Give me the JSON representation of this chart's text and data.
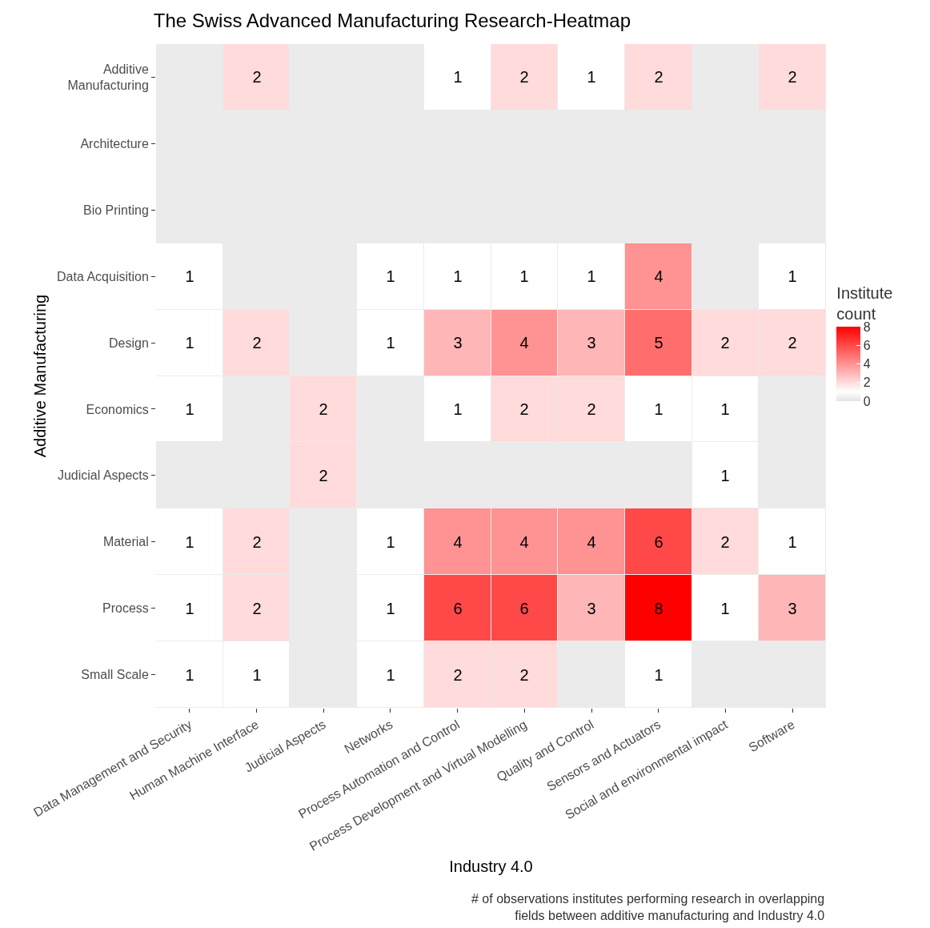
{
  "chart_data": {
    "type": "heatmap",
    "title": "The Swiss Advanced Manufacturing Research-Heatmap",
    "xlabel": "Industry 4.0",
    "ylabel": "Additive Manufacturing",
    "clabel": "Institute\ncount",
    "categories": [
      "Data Management and Security",
      "Human Machine Interface",
      "Judicial Aspects",
      "Networks",
      "Process Automation and Control",
      "Process Development and Virtual Modelling",
      "Quality and Control",
      "Sensors and Actuators",
      "Social and environmental impact",
      "Software"
    ],
    "y_categories": [
      "Additive\nManufacturing",
      "Architecture",
      "Bio Printing",
      "Data Acquisition",
      "Design",
      "Economics",
      "Judicial Aspects",
      "Material",
      "Process",
      "Small Scale"
    ],
    "cells": [
      [
        null,
        2,
        null,
        null,
        1,
        2,
        1,
        2,
        null,
        2
      ],
      [
        null,
        null,
        null,
        null,
        null,
        null,
        null,
        null,
        null,
        null
      ],
      [
        null,
        null,
        null,
        null,
        null,
        null,
        null,
        null,
        null,
        null
      ],
      [
        1,
        null,
        null,
        1,
        1,
        1,
        1,
        4,
        null,
        1
      ],
      [
        1,
        2,
        null,
        1,
        3,
        4,
        3,
        5,
        2,
        2
      ],
      [
        1,
        null,
        2,
        null,
        1,
        2,
        2,
        1,
        1,
        null
      ],
      [
        null,
        null,
        2,
        null,
        null,
        null,
        null,
        null,
        1,
        null
      ],
      [
        1,
        2,
        null,
        1,
        4,
        4,
        4,
        6,
        2,
        1
      ],
      [
        1,
        2,
        null,
        1,
        6,
        6,
        3,
        8,
        1,
        3
      ],
      [
        1,
        1,
        null,
        1,
        2,
        2,
        null,
        1,
        null,
        null
      ]
    ],
    "clim": [
      0,
      8
    ],
    "cticks": [
      0,
      2,
      4,
      6,
      8
    ],
    "data_labels": true,
    "annotations": [
      "# of observations institutes performing research in overlapping\nfields between additive manufacturing and Industry 4.0"
    ]
  }
}
